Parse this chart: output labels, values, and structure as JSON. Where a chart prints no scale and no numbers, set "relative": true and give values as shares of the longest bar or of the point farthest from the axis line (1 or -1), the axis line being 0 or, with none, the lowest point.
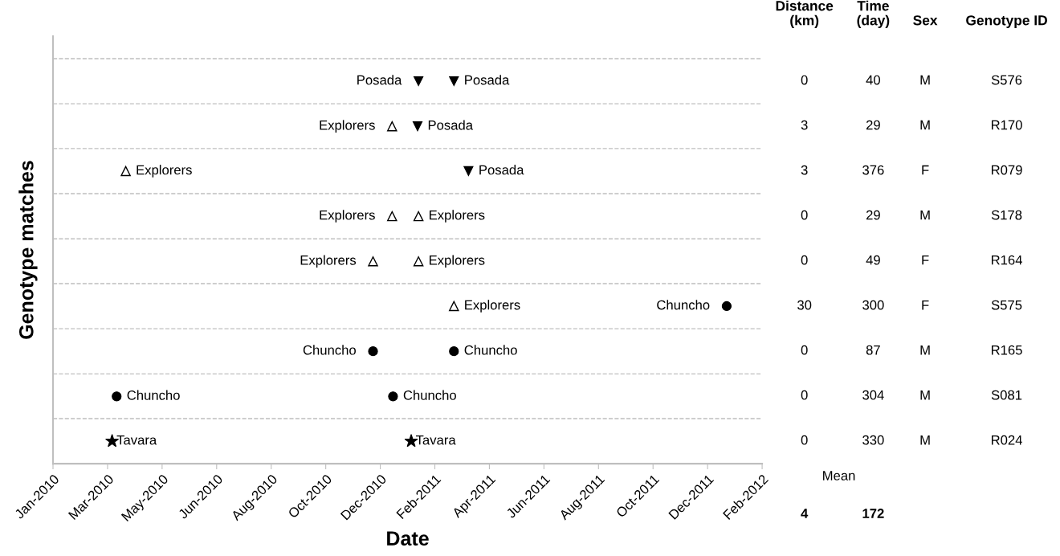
{
  "chart_data": [
    {
      "type": "scatter",
      "xlabel": "Date",
      "ylabel": "Genotype matches",
      "xlim": [
        "2010-01-01",
        "2012-02-20"
      ],
      "xticks": [
        {
          "value": "2010-01-01",
          "label": "Jan-2010"
        },
        {
          "value": "2010-03-02",
          "label": "Mar-2010"
        },
        {
          "value": "2010-05-01",
          "label": "May-2010"
        },
        {
          "value": "2010-06-30",
          "label": "Jun-2010"
        },
        {
          "value": "2010-08-29",
          "label": "Aug-2010"
        },
        {
          "value": "2010-10-28",
          "label": "Oct-2010"
        },
        {
          "value": "2010-12-27",
          "label": "Dec-2010"
        },
        {
          "value": "2011-02-25",
          "label": "Feb-2011"
        },
        {
          "value": "2011-04-26",
          "label": "Apr-2011"
        },
        {
          "value": "2011-06-25",
          "label": "Jun-2011"
        },
        {
          "value": "2011-08-24",
          "label": "Aug-2011"
        },
        {
          "value": "2011-10-23",
          "label": "Oct-2011"
        },
        {
          "value": "2011-12-22",
          "label": "Dec-2011"
        },
        {
          "value": "2012-02-20",
          "label": "Feb-2012"
        }
      ],
      "relative": true,
      "tick_labels": "x",
      "grid": "y",
      "line_style": "dashed",
      "series": [
        {
          "name": "Posada",
          "color": "#000000",
          "marker": "triangle-down",
          "x": [
            "2011-02-07",
            "2011-03-18",
            "2011-02-06",
            "2011-04-03"
          ],
          "values": [
            1,
            1,
            0.882,
            0.765
          ]
        },
        {
          "name": "Explorers",
          "color": "#000000",
          "marker": "triangle-open",
          "x": [
            "2011-01-09",
            "2010-03-22",
            "2011-01-09",
            "2011-02-07",
            "2010-12-19",
            "2011-02-07",
            "2011-03-18"
          ],
          "values": [
            0.882,
            0.765,
            0.647,
            0.647,
            0.529,
            0.529,
            0.412
          ]
        },
        {
          "name": "Chuncho",
          "color": "#000000",
          "marker": "circle",
          "x": [
            "2012-01-12",
            "2010-12-19",
            "2011-03-18",
            "2010-03-12",
            "2011-01-10"
          ],
          "values": [
            0.412,
            0.294,
            0.294,
            0.176,
            0.176
          ]
        },
        {
          "name": "Tavara",
          "color": "#000000",
          "marker": "star",
          "x": [
            "2010-03-07",
            "2011-01-30"
          ],
          "values": [
            0.059,
            0.059
          ]
        }
      ]
    },
    {
      "type": "other",
      "categories": [
        "Distance\n(km)",
        "Time\n(day)",
        "Sex",
        "Genotype ID"
      ],
      "cell_labels": [
        [
          "0",
          "40",
          "M",
          "S576"
        ],
        [
          "3",
          "29",
          "M",
          "R170"
        ],
        [
          "3",
          "376",
          "F",
          "R079"
        ],
        [
          "0",
          "29",
          "M",
          "S178"
        ],
        [
          "0",
          "49",
          "F",
          "R164"
        ],
        [
          "30",
          "300",
          "F",
          "S575"
        ],
        [
          "0",
          "87",
          "M",
          "R165"
        ],
        [
          "0",
          "304",
          "M",
          "S081"
        ],
        [
          "0",
          "330",
          "M",
          "R024"
        ]
      ],
      "annotations": [
        "Mean"
      ],
      "totals": [
        "4",
        "172"
      ]
    }
  ]
}
